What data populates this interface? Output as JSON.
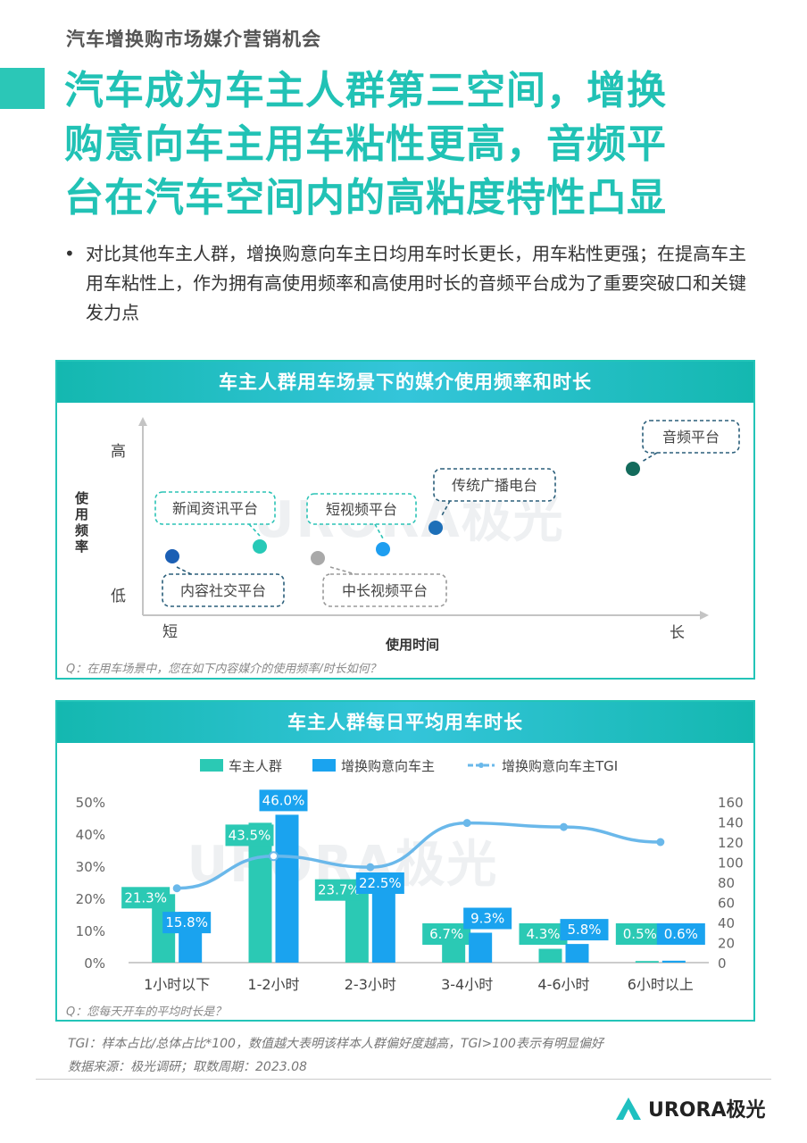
{
  "header": "汽车增换购市场媒介营销机会",
  "title": [
    "汽车成为车主人群第三空间，增换",
    "购意向车主用车粘性更高，音频平",
    "台在汽车空间内的高粘度特性凸显"
  ],
  "bullet": "对比其他车主人群，增换购意向车主日均用车时长更长，用车粘性更强；在提高车主用车粘性上，作为拥有高使用频率和高使用时长的音频平台成为了重要突破口和关键发力点",
  "panel1": {
    "title": "车主人群用车场景下的媒介使用频率和时长",
    "y_label": "使用频率",
    "y_high": "高",
    "y_low": "低",
    "x_label": "使用时间",
    "x_short": "短",
    "x_long": "长",
    "question": "Q：在用车场景中，您在如下内容媒介的使用频率/时长如何？",
    "watermark": "URORA极光",
    "points": [
      {
        "label": "内容社交平台",
        "color": "#1b5fb4"
      },
      {
        "label": "新闻资讯平台",
        "color": "#27c9b7"
      },
      {
        "label": "中长视频平台",
        "color": "#a9a9a9"
      },
      {
        "label": "短视频平台",
        "color": "#1e9ef0"
      },
      {
        "label": "传统广播电台",
        "color": "#1d6fb8"
      },
      {
        "label": "音频平台",
        "color": "#136b5c"
      }
    ]
  },
  "panel2": {
    "title": "车主人群每日平均用车时长",
    "question": "Q：您每天开车的平均时长是？",
    "watermark": "URORA极光"
  },
  "chart_data": {
    "type": "bar",
    "categories": [
      "1小时以下",
      "1-2小时",
      "2-3小时",
      "3-4小时",
      "4-6小时",
      "6小时以上"
    ],
    "series": [
      {
        "name": "车主人群",
        "values": [
          21.3,
          43.5,
          23.7,
          6.7,
          4.3,
          0.5
        ],
        "labels": [
          "21.3%",
          "43.5%",
          "23.7%",
          "6.7%",
          "4.3%",
          "0.5%"
        ],
        "color": "#2bc9b4"
      },
      {
        "name": "增换购意向车主",
        "values": [
          15.8,
          46.0,
          22.5,
          9.3,
          5.8,
          0.6
        ],
        "labels": [
          "15.8%",
          "46.0%",
          "22.5%",
          "9.3%",
          "5.8%",
          "0.6%"
        ],
        "color": "#1aa3ef"
      },
      {
        "name": "增换购意向车主TGI",
        "type": "line",
        "axis": "right",
        "values": [
          74,
          106,
          95,
          139,
          135,
          120
        ],
        "color": "#6ab8ea"
      }
    ],
    "left_axis_ticks": [
      "0%",
      "10%",
      "20%",
      "30%",
      "40%",
      "50%"
    ],
    "right_axis_ticks": [
      "0",
      "20",
      "40",
      "60",
      "80",
      "100",
      "120",
      "140",
      "160"
    ],
    "ylim_left": [
      0,
      50
    ],
    "ylim_right": [
      0,
      160
    ],
    "legend_position": "top"
  },
  "footnotes": [
    "TGI：样本占比/总体占比*100，数值越大表明该样本人群偏好度越高，TGI>100表示有明显偏好",
    "数据来源：极光调研；取数周期：2023.08"
  ],
  "logo": {
    "text": "URORA极光",
    "color": "#1fc0c0"
  }
}
